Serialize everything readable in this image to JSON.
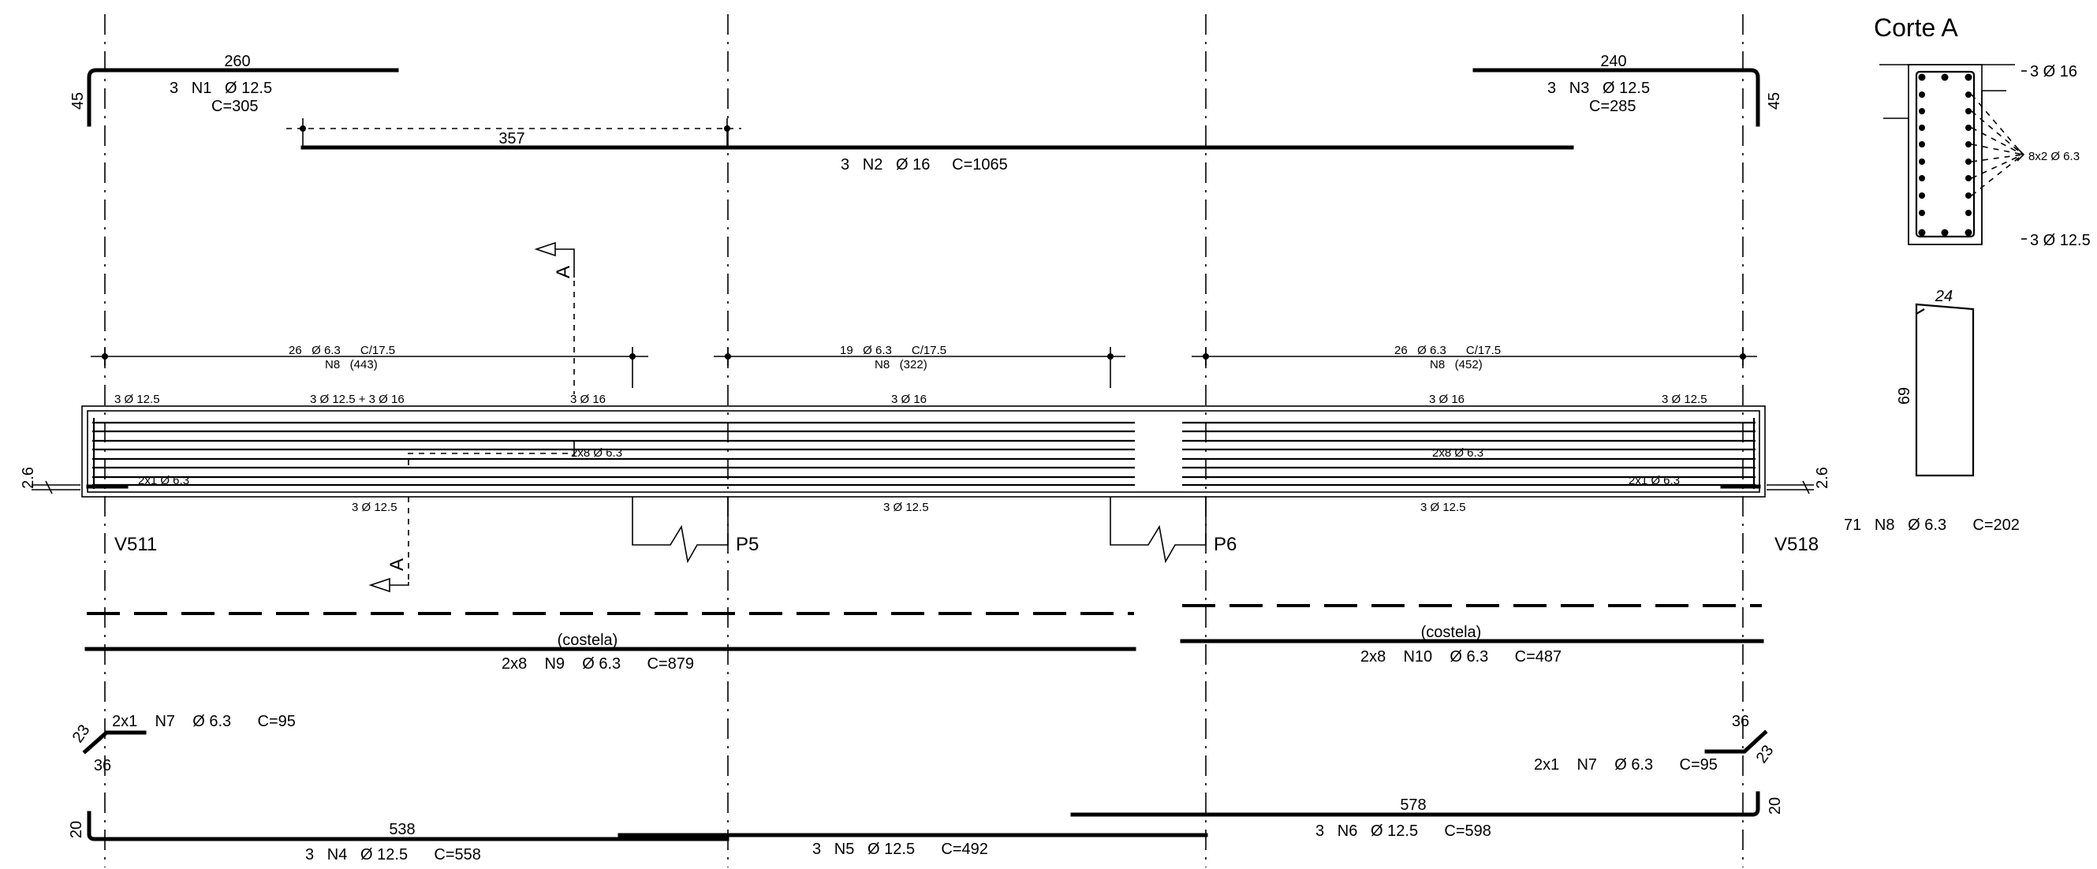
{
  "section": {
    "title": "Corte A",
    "top_bars": "3 Ø 16",
    "side_bars": "8x2 Ø 6.3",
    "bottom_bars": "3 Ø 12.5"
  },
  "stirrup_detail": {
    "width": "24",
    "height": "69",
    "label": "71   N8   Ø 6.3      C=202"
  },
  "supports": {
    "left": "V511",
    "p5": "P5",
    "p6": "P6",
    "right": "V518"
  },
  "cut_marker": "A",
  "n1": {
    "length": "260",
    "hook": "45",
    "label": "3   N1   Ø 12.5",
    "total": "C=305"
  },
  "n3": {
    "length": "240",
    "hook": "45",
    "label": "3   N3   Ø 12.5",
    "total": "C=285"
  },
  "n2": {
    "dim": "357",
    "label": "3   N2   Ø 16     C=1065"
  },
  "stirrups": {
    "span1_a": "26   Ø 6.3      C/17.5",
    "span1_b": "N8   (443)",
    "span2_a": "19   Ø 6.3      C/17.5",
    "span2_b": "N8   (322)",
    "span3_a": "26   Ø 6.3      C/17.5",
    "span3_b": "N8   (452)"
  },
  "beam_labels": {
    "top1": "3 Ø 12.5",
    "top2": "3 Ø 12.5 + 3 Ø 16",
    "top3": "3 Ø 16",
    "top4": "3 Ø 16",
    "top5": "3 Ø 16",
    "top6": "3 Ø 12.5",
    "skin_left": "2x8 Ø 6.3",
    "skin_right": "2x8 Ø 6.3",
    "end_left": "2x1 Ø 6.3",
    "end_right": "2x1 Ø 6.3",
    "bot1": "3 Ø 12.5",
    "bot2": "3 Ø 12.5",
    "bot3": "3 Ø 12.5",
    "support_w_left": "2.6",
    "support_w_right": "2.6"
  },
  "n9": {
    "note": "(costela)",
    "label": "2x8    N9    Ø 6.3      C=879"
  },
  "n10": {
    "note": "(costela)",
    "label": "2x8    N10    Ø 6.3      C=487"
  },
  "n7_left": {
    "label": "2x1    N7    Ø 6.3      C=95",
    "leg": "23",
    "base": "36"
  },
  "n7_right": {
    "label": "2x1    N7    Ø 6.3      C=95",
    "leg": "23",
    "base": "36"
  },
  "n4": {
    "length": "538",
    "hook": "20",
    "label": "3   N4   Ø 12.5      C=558"
  },
  "n5": {
    "label": "3   N5   Ø 12.5      C=492"
  },
  "n6": {
    "length": "578",
    "hook": "20",
    "label": "3   N6   Ø 12.5      C=598"
  }
}
